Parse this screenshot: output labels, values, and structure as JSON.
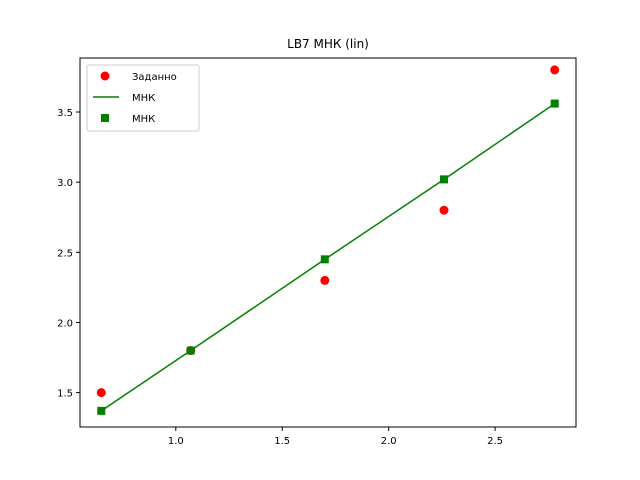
{
  "chart_data": {
    "type": "scatter",
    "title": "LB7 МНК (lin)",
    "xlabel": "",
    "ylabel": "",
    "xlim": [
      0.55,
      2.88
    ],
    "ylim": [
      1.255,
      3.885
    ],
    "xticks": [
      1.0,
      1.5,
      2.0,
      2.5
    ],
    "xtick_labels": [
      "1.0",
      "1.5",
      "2.0",
      "2.5"
    ],
    "yticks": [
      1.5,
      2.0,
      2.5,
      3.0,
      3.5
    ],
    "ytick_labels": [
      "1.5",
      "2.0",
      "2.5",
      "3.0",
      "3.5"
    ],
    "grid": false,
    "legend_position": "top-left",
    "series": [
      {
        "name": "Заданно",
        "kind": "scatter",
        "marker": "circle",
        "color": "#ff0000",
        "x": [
          0.65,
          1.07,
          1.7,
          2.26,
          2.78
        ],
        "y": [
          1.5,
          1.8,
          2.3,
          2.8,
          3.8
        ]
      },
      {
        "name": "МНК",
        "kind": "line",
        "color": "#008000",
        "x": [
          0.65,
          1.07,
          1.7,
          2.26,
          2.78
        ],
        "y": [
          1.37,
          1.8,
          2.45,
          3.02,
          3.56
        ]
      },
      {
        "name": "МНК",
        "kind": "scatter",
        "marker": "square",
        "color": "#008000",
        "x": [
          0.65,
          1.07,
          1.7,
          2.26,
          2.78
        ],
        "y": [
          1.37,
          1.8,
          2.45,
          3.02,
          3.56
        ]
      }
    ]
  }
}
